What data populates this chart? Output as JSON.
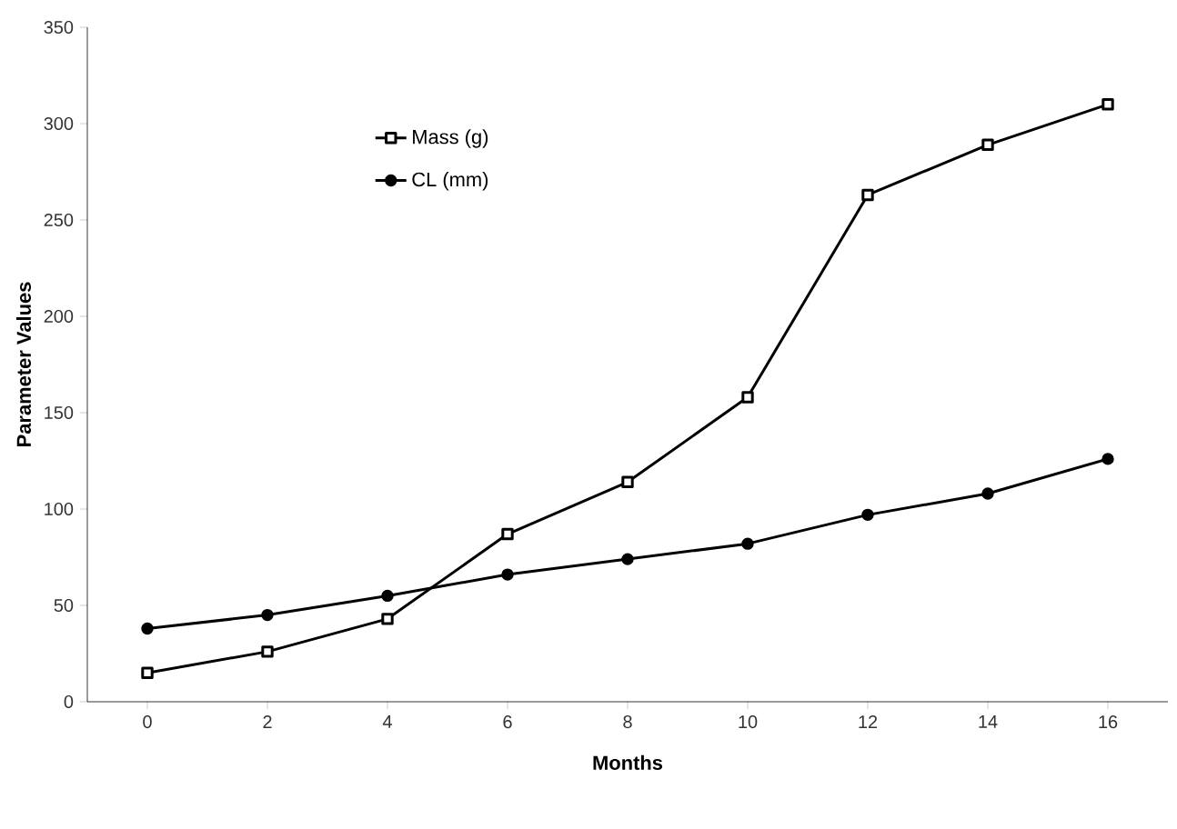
{
  "chart_data": {
    "type": "line",
    "xlabel": "Months",
    "ylabel": "Parameter Values",
    "categories": [
      "0",
      "2",
      "4",
      "6",
      "8",
      "10",
      "12",
      "14",
      "16"
    ],
    "series": [
      {
        "name": "Mass (g)",
        "color": "#000000",
        "marker": "square",
        "values": [
          15,
          26,
          43,
          87,
          114,
          158,
          263,
          289,
          310
        ]
      },
      {
        "name": "CL (mm)",
        "color": "#000000",
        "marker": "circle",
        "values": [
          38,
          45,
          55,
          66,
          74,
          82,
          97,
          108,
          126
        ]
      }
    ],
    "ylim": [
      0,
      350
    ],
    "yticks": [
      0,
      50,
      100,
      150,
      200,
      250,
      300,
      350
    ],
    "legend": "top left",
    "grid": false,
    "line_style": "solid"
  }
}
